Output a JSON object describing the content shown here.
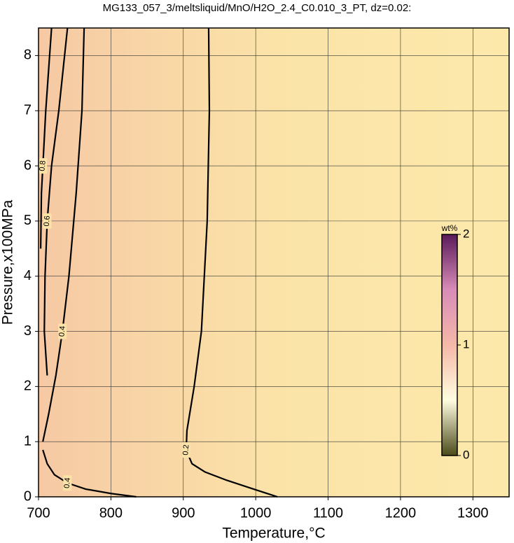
{
  "chart_data": {
    "type": "contour",
    "title": "MG133_057_3/meltsliquid/MnO/H2O_2.4_C0.010_3_PT, dz=0.02:",
    "x_label": "Temperature,°C",
    "y_label": "Pressure,x100MPa",
    "xlim": [
      700,
      1350
    ],
    "ylim": [
      0,
      8.5
    ],
    "xticks": [
      700,
      800,
      900,
      1000,
      1100,
      1200,
      1300
    ],
    "yticks": [
      0,
      1,
      2,
      3,
      4,
      5,
      6,
      7,
      8
    ],
    "grid": true,
    "background": [
      "#f6c9a4",
      "#fbe3a8",
      "#fce9aa"
    ],
    "contours": [
      {
        "level": 0.2,
        "x": [
          935,
          936,
          933,
          925,
          915,
          905,
          904,
          912,
          930,
          960,
          990,
          1030
        ],
        "y": [
          8.5,
          7,
          5,
          3,
          2,
          1.2,
          0.85,
          0.6,
          0.45,
          0.3,
          0.17,
          0
        ]
      },
      {
        "level": 0.4,
        "x": [
          763,
          760,
          752,
          742,
          733,
          724,
          714,
          706
        ],
        "y": [
          8.5,
          7,
          5.5,
          4,
          3,
          2.2,
          1.5,
          1
        ]
      },
      {
        "level": 0.4,
        "x": [
          706,
          712,
          722,
          740,
          765,
          800,
          835
        ],
        "y": [
          0.85,
          0.6,
          0.4,
          0.25,
          0.14,
          0.06,
          0
        ]
      },
      {
        "level": 0.6,
        "x": [
          740,
          728,
          718,
          712,
          709,
          708,
          712
        ],
        "y": [
          8.5,
          7,
          6,
          5,
          4,
          3,
          2.2
        ]
      },
      {
        "level": 0.8,
        "x": [
          718,
          710,
          706,
          704,
          703
        ],
        "y": [
          8.5,
          7,
          6,
          5.5,
          4.5
        ]
      }
    ],
    "colorbar": {
      "label": "wt%",
      "lim": [
        0,
        2
      ],
      "ticks": [
        0,
        1,
        2
      ],
      "colors": [
        "#4b4a1a",
        "#fffde0",
        "#f5b8a8",
        "#d88cb8",
        "#5a1a5a"
      ]
    }
  }
}
